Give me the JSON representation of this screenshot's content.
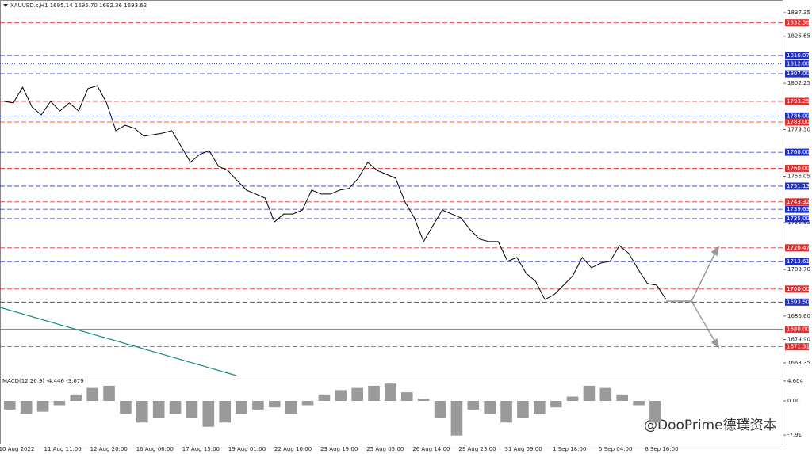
{
  "chart_data": [
    {
      "type": "line",
      "title": "XAUUSD.s,H1  1695.14 1695.70 1692.36 1693.62",
      "color": "#000000",
      "x_labels": [
        "10 Aug 2022",
        "11 Aug 11:00",
        "12 Aug 20:00",
        "16 Aug 06:00",
        "17 Aug 15:00",
        "19 Aug 01:00",
        "22 Aug 10:00",
        "23 Aug 19:00",
        "25 Aug 05:00",
        "26 Aug 14:00",
        "29 Aug 23:00",
        "31 Aug 09:00",
        "1 Sep 18:00",
        "5 Sep 04:00",
        "6 Sep 16:00"
      ],
      "values": [
        1793.3,
        1792.5,
        1800.3,
        1790.5,
        1786.6,
        1793.3,
        1788.5,
        1792.5,
        1788.5,
        1799.6,
        1801.1,
        1792.5,
        1778.7,
        1781.4,
        1779.9,
        1776.0,
        1776.7,
        1777.5,
        1778.7,
        1770.8,
        1763.0,
        1766.9,
        1768.8,
        1761.0,
        1759.0,
        1753.9,
        1749.2,
        1747.2,
        1745.2,
        1733.4,
        1737.3,
        1737.3,
        1739.3,
        1749.2,
        1747.2,
        1747.2,
        1749.2,
        1750.0,
        1755.1,
        1763.0,
        1759.0,
        1757.0,
        1755.1,
        1743.3,
        1735.4,
        1723.6,
        1731.5,
        1739.3,
        1737.3,
        1735.4,
        1729.5,
        1724.8,
        1723.6,
        1723.6,
        1713.8,
        1715.7,
        1707.8,
        1703.9,
        1694.8,
        1697.2,
        1701.9,
        1706.6,
        1715.7,
        1710.6,
        1712.9,
        1713.8,
        1721.6,
        1717.7,
        1709.8,
        1702.7,
        1701.9,
        1694.8
      ],
      "ylim": [
        1657.0,
        1843.65
      ],
      "yticks": [
        1837.35,
        1825.65,
        1802.25,
        {
          "value": 1779.3,
          "label": "1779.30"
        },
        1756.05,
        1732.95,
        {
          "value": 1709.7,
          "label": "1709.70"
        },
        {
          "value": 1686.6,
          "label": "1686.60"
        },
        {
          "value": 1674.9,
          "label": "1674.90"
        },
        1663.35
      ],
      "levels": [
        {
          "value": 1832.36,
          "label": "1832.36",
          "color": "#e03030",
          "style": "dash"
        },
        {
          "value": 1816.07,
          "label": "1816.07",
          "color": "#2030c0",
          "style": "dash"
        },
        {
          "value": 1812.0,
          "label": "1812.00",
          "color": "#2030c0",
          "style": "dot"
        },
        {
          "value": 1807.0,
          "label": "1807.00",
          "color": "#2030c0",
          "style": "dash"
        },
        {
          "value": 1793.25,
          "label": "1793.25",
          "color": "#e03030",
          "style": "dash"
        },
        {
          "value": 1786.0,
          "label": "1786.00",
          "color": "#2030c0",
          "style": "dash"
        },
        {
          "value": 1783.0,
          "label": "1783.00",
          "color": "#e03030",
          "style": "dash"
        },
        {
          "value": 1768.0,
          "label": "1768.00",
          "color": "#2030c0",
          "style": "dash"
        },
        {
          "value": 1760.0,
          "label": "1760.00",
          "color": "#e03030",
          "style": "dash"
        },
        {
          "value": 1751.13,
          "label": "1751.13",
          "color": "#2030c0",
          "style": "dash"
        },
        {
          "value": 1743.32,
          "label": "1743.32",
          "color": "#e03030",
          "style": "dash"
        },
        {
          "value": 1739.63,
          "label": "1739.63",
          "color": "#2030c0",
          "style": "dash"
        },
        {
          "value": 1735.0,
          "label": "1735.00",
          "color": "#2030c0",
          "style": "dash"
        },
        {
          "value": 1720.47,
          "label": "1720.47",
          "color": "#e03030",
          "style": "dash"
        },
        {
          "value": 1713.61,
          "label": "1713.61",
          "color": "#2030c0",
          "style": "dash"
        },
        {
          "value": 1700.0,
          "label": "1700.00",
          "color": "#e03030",
          "style": "dash"
        },
        {
          "value": 1693.5,
          "label": "1693.50",
          "color": "#2030c0",
          "style": "dash"
        },
        {
          "value": 1680.0,
          "label": "1680.00",
          "color": "#e03030",
          "style": "solid"
        },
        {
          "value": 1671.31,
          "label": "1671.31",
          "color": "#e03030",
          "style": "dash"
        }
      ]
    },
    {
      "type": "bar",
      "title": "MACD(12,26,9) -4.446 -3.679",
      "color": "#9a9a9a",
      "values": [
        -2,
        -3,
        -2.5,
        -1,
        1.5,
        3,
        3.5,
        -3,
        -5,
        -4,
        -3,
        -4,
        -6,
        -5,
        -3,
        -2,
        -1.5,
        -3,
        -1,
        1.5,
        2.5,
        3,
        3.5,
        4,
        2,
        0.5,
        -4,
        -8,
        -2,
        -3,
        -5,
        -4,
        -3,
        -1.5,
        1,
        3.5,
        3,
        1.5,
        -1,
        -5
      ],
      "ylim": [
        -9.9,
        5.5
      ],
      "yticks": [
        4.604,
        {
          "value": 0,
          "label": "0.00"
        },
        -7.91
      ]
    }
  ],
  "watermark": "@DooPrime德璞资本"
}
